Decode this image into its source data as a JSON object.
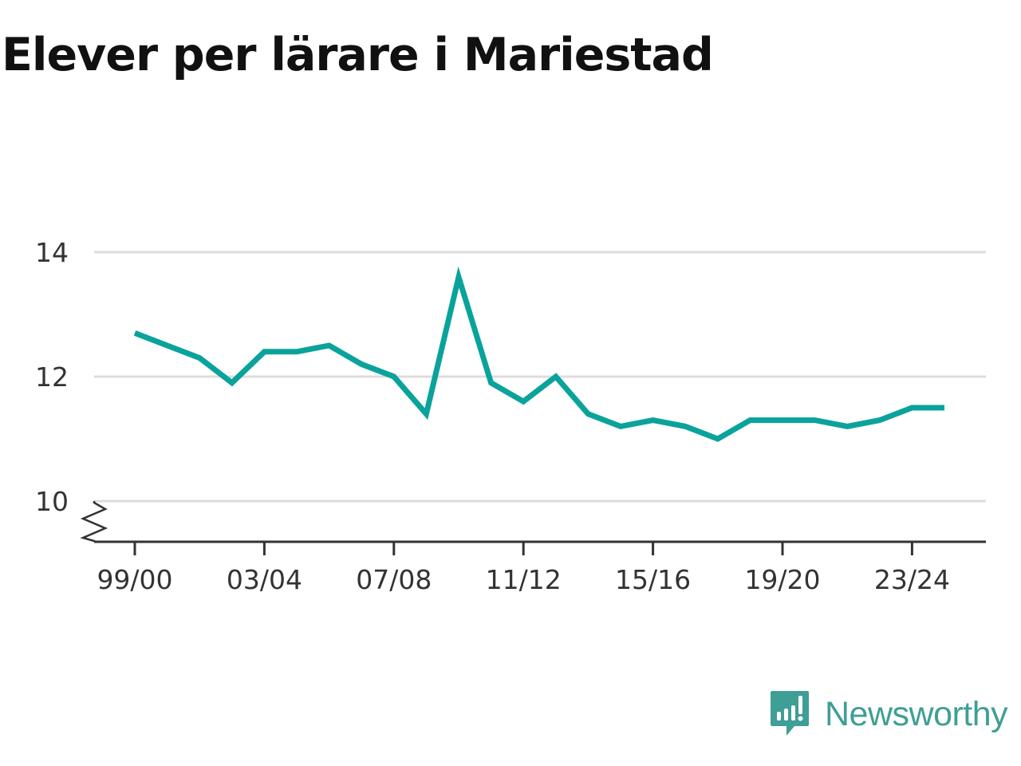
{
  "title": "Elever per lärare i Mariestad",
  "brand": {
    "name": "Newsworthy",
    "color": "#3f9e96",
    "icon": "newsworthy-logo-icon"
  },
  "colors": {
    "line": "#0aa39b",
    "grid": "#dddddd",
    "axis": "#333333"
  },
  "chart_data": {
    "type": "line",
    "title": "Elever per lärare i Mariestad",
    "xlabel": "",
    "ylabel": "",
    "x": [
      "99/00",
      "00/01",
      "01/02",
      "02/03",
      "03/04",
      "04/05",
      "05/06",
      "06/07",
      "07/08",
      "08/09",
      "09/10",
      "10/11",
      "11/12",
      "12/13",
      "13/14",
      "14/15",
      "15/16",
      "16/17",
      "17/18",
      "18/19",
      "19/20",
      "20/21",
      "21/22",
      "22/23",
      "23/24",
      "24/25"
    ],
    "x_tick_labels": [
      "99/00",
      "03/04",
      "07/08",
      "11/12",
      "15/16",
      "19/20",
      "23/24"
    ],
    "y_ticks": [
      10,
      12,
      14
    ],
    "ylim": [
      9.35,
      14
    ],
    "y_axis_break": true,
    "grid": true,
    "series": [
      {
        "values": [
          12.7,
          12.5,
          12.3,
          11.9,
          12.4,
          12.4,
          12.5,
          12.2,
          12.0,
          11.4,
          13.6,
          11.9,
          11.6,
          12.0,
          11.4,
          11.2,
          11.3,
          11.2,
          11.0,
          11.3,
          11.3,
          11.3,
          11.2,
          11.3,
          11.5,
          11.5
        ]
      }
    ]
  }
}
